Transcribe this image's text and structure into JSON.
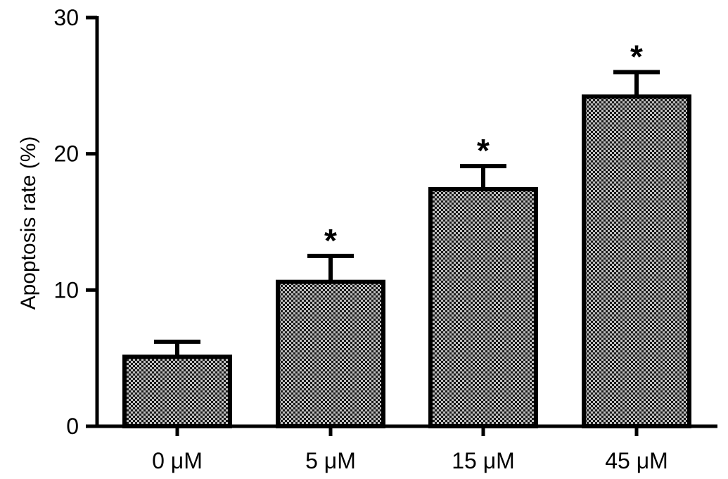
{
  "chart_data": {
    "type": "bar",
    "title": "",
    "xlabel": "",
    "ylabel": "Apoptosis rate (%)",
    "categories": [
      "0 μM",
      "5 μM",
      "15 μM",
      "45 μM"
    ],
    "values": [
      5.1,
      10.6,
      17.4,
      24.2
    ],
    "error": [
      1.1,
      1.9,
      1.7,
      1.8
    ],
    "significance": [
      "",
      "*",
      "*",
      "*"
    ],
    "ylim": [
      0,
      30
    ],
    "yticks": [
      "0",
      "10",
      "20",
      "30"
    ],
    "grid": false,
    "legend": "none",
    "colors": {
      "bar_fill": "#b8b8b8",
      "bar_pattern": "#1a1a1a",
      "axis": "#000000"
    }
  }
}
